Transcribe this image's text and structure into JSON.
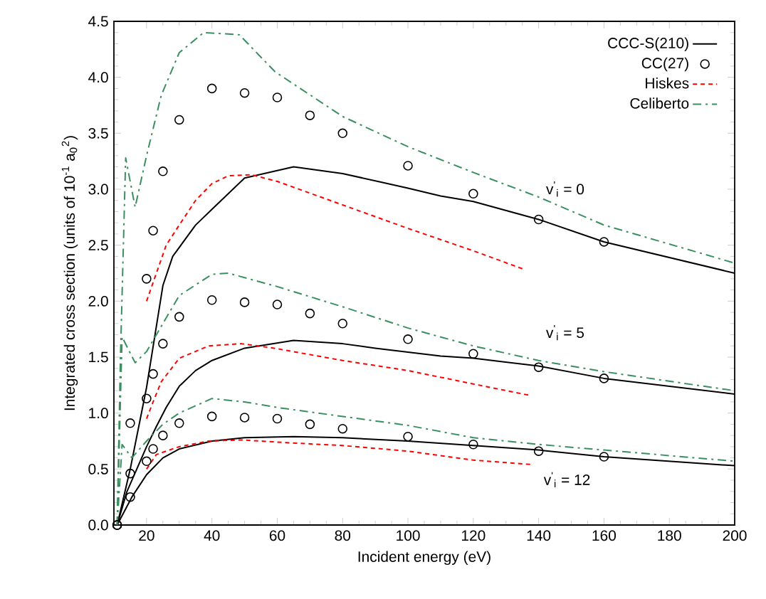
{
  "chart_data": {
    "type": "line",
    "xlabel": "Incident energy (eV)",
    "ylabel": "Integrated cross section (units of 10$^{-1}$ a$_{0}$$^{2}$)",
    "xlim": [
      10,
      200
    ],
    "ylim": [
      0,
      4.5
    ],
    "xticks": [
      20,
      40,
      60,
      80,
      100,
      120,
      140,
      160,
      180,
      200
    ],
    "yticks": [
      {
        "value": 0,
        "label": "0.0"
      },
      {
        "value": 0.5,
        "label": "0.5"
      },
      {
        "value": 1,
        "label": "1.0"
      },
      {
        "value": 1.5,
        "label": "1.5"
      },
      {
        "value": 2,
        "label": "2.0"
      },
      {
        "value": 2.5,
        "label": "2.5"
      },
      {
        "value": 3,
        "label": "3.0"
      },
      {
        "value": 3.5,
        "label": "3.5"
      },
      {
        "value": 4,
        "label": "4.0"
      },
      {
        "value": 4.5,
        "label": "4.5"
      }
    ],
    "legend": "top right",
    "series": [
      {
        "name": "CCC-S(210)",
        "color": "#000000",
        "line_style": "solid",
        "x": [
          11,
          15,
          20,
          25,
          28,
          30,
          35,
          40,
          50,
          65,
          80,
          100,
          110,
          120,
          140,
          160,
          200
        ],
        "values": [
          0,
          0.5,
          1.23,
          2.14,
          2.4,
          2.48,
          2.68,
          2.82,
          3.1,
          3.2,
          3.14,
          3.01,
          2.94,
          2.89,
          2.73,
          2.53,
          2.25
        ]
      },
      {
        "name": "CC(27)",
        "color": "#000000",
        "type": "scatter",
        "marker": "circle",
        "x": [
          11,
          15,
          20,
          22,
          25,
          30,
          40,
          50,
          60,
          70,
          80,
          100,
          120,
          140,
          160
        ],
        "values": [
          0,
          0.91,
          2.2,
          2.63,
          3.16,
          3.62,
          3.9,
          3.86,
          3.82,
          3.66,
          3.5,
          3.21,
          2.96,
          2.73,
          2.53
        ]
      },
      {
        "name": "Hiskes",
        "color": "#ff0000",
        "line_style": "dashed",
        "x": [
          20,
          23,
          26,
          30,
          35,
          40,
          45,
          52,
          60,
          80,
          100,
          120,
          135
        ],
        "values": [
          2.0,
          2.25,
          2.5,
          2.68,
          2.9,
          3.05,
          3.12,
          3.13,
          3.07,
          2.86,
          2.65,
          2.45,
          2.29
        ]
      },
      {
        "name": "Celiberto",
        "color": "#3a8f5f",
        "line_style": "dash-dot",
        "x": [
          11,
          12,
          13.6,
          16.5,
          20,
          24.5,
          30,
          37.5,
          48.4,
          59.3,
          80,
          100,
          120,
          140,
          160,
          200
        ],
        "values": [
          0,
          1.5,
          3.28,
          2.84,
          3.3,
          3.84,
          4.22,
          4.4,
          4.38,
          4.05,
          3.65,
          3.38,
          3.15,
          2.93,
          2.68,
          2.34
        ]
      },
      {
        "color": "#000000",
        "type": "line",
        "line_style": "solid",
        "x": [
          11,
          14,
          17,
          20,
          23,
          26,
          30,
          35,
          40,
          50,
          65,
          80,
          90,
          110,
          120,
          140,
          160,
          200
        ],
        "values": [
          0,
          0.3,
          0.5,
          0.7,
          0.88,
          1.05,
          1.24,
          1.38,
          1.47,
          1.58,
          1.65,
          1.62,
          1.58,
          1.51,
          1.49,
          1.42,
          1.31,
          1.17
        ]
      },
      {
        "color": "#000000",
        "type": "scatter",
        "marker": "circle",
        "x": [
          11,
          15,
          20,
          22,
          25,
          30,
          40,
          50,
          60,
          70,
          80,
          100,
          120,
          140,
          160
        ],
        "values": [
          0,
          0.46,
          1.13,
          1.35,
          1.62,
          1.86,
          2.01,
          1.99,
          1.97,
          1.89,
          1.8,
          1.66,
          1.53,
          1.41,
          1.31
        ]
      },
      {
        "color": "#ff0000",
        "type": "line",
        "line_style": "dashed",
        "x": [
          20,
          22,
          24.5,
          30,
          39,
          49,
          59,
          80,
          100,
          120,
          137
        ],
        "values": [
          0.95,
          1.1,
          1.28,
          1.49,
          1.6,
          1.62,
          1.58,
          1.47,
          1.38,
          1.26,
          1.16
        ]
      },
      {
        "color": "#3a8f5f",
        "type": "line",
        "line_style": "dash-dot",
        "x": [
          11,
          12.5,
          16.5,
          20,
          25,
          30,
          40,
          45,
          60,
          80,
          100,
          120,
          140,
          160,
          200
        ],
        "values": [
          0,
          1.68,
          1.45,
          1.55,
          1.8,
          2.05,
          2.24,
          2.25,
          2.13,
          1.95,
          1.76,
          1.6,
          1.47,
          1.37,
          1.2
        ]
      },
      {
        "color": "#000000",
        "type": "line",
        "line_style": "solid",
        "x": [
          11,
          15.5,
          20,
          25,
          30,
          40,
          50,
          65,
          80,
          100,
          120,
          140,
          160,
          200
        ],
        "values": [
          0,
          0.25,
          0.45,
          0.6,
          0.68,
          0.75,
          0.78,
          0.79,
          0.78,
          0.75,
          0.71,
          0.67,
          0.61,
          0.53
        ]
      },
      {
        "color": "#000000",
        "type": "scatter",
        "marker": "circle",
        "x": [
          11,
          15,
          20,
          22,
          25,
          30,
          40,
          50,
          60,
          70,
          80,
          100,
          120,
          140,
          160
        ],
        "values": [
          0,
          0.25,
          0.57,
          0.68,
          0.8,
          0.91,
          0.97,
          0.96,
          0.95,
          0.9,
          0.86,
          0.79,
          0.72,
          0.66,
          0.61
        ]
      },
      {
        "color": "#ff0000",
        "type": "line",
        "line_style": "dashed",
        "x": [
          20,
          23,
          30,
          39,
          49,
          66.5,
          80,
          100,
          120,
          138
        ],
        "values": [
          0.5,
          0.63,
          0.7,
          0.75,
          0.76,
          0.73,
          0.71,
          0.66,
          0.58,
          0.54
        ]
      },
      {
        "color": "#3a8f5f",
        "type": "line",
        "line_style": "dash-dot",
        "x": [
          11,
          12.5,
          15.5,
          20,
          25,
          30,
          40,
          50,
          60,
          80,
          100,
          120,
          140,
          160,
          200
        ],
        "values": [
          0,
          0.72,
          0.6,
          0.75,
          0.9,
          1.0,
          1.13,
          1.1,
          1.05,
          0.97,
          0.89,
          0.78,
          0.72,
          0.67,
          0.57
        ]
      }
    ],
    "annotations": [
      "v$^{'}$$_{i}$ = 0",
      "v$^{'}$$_{i}$ = 5",
      "v$^{'}$$_{i}$ = 12"
    ]
  }
}
